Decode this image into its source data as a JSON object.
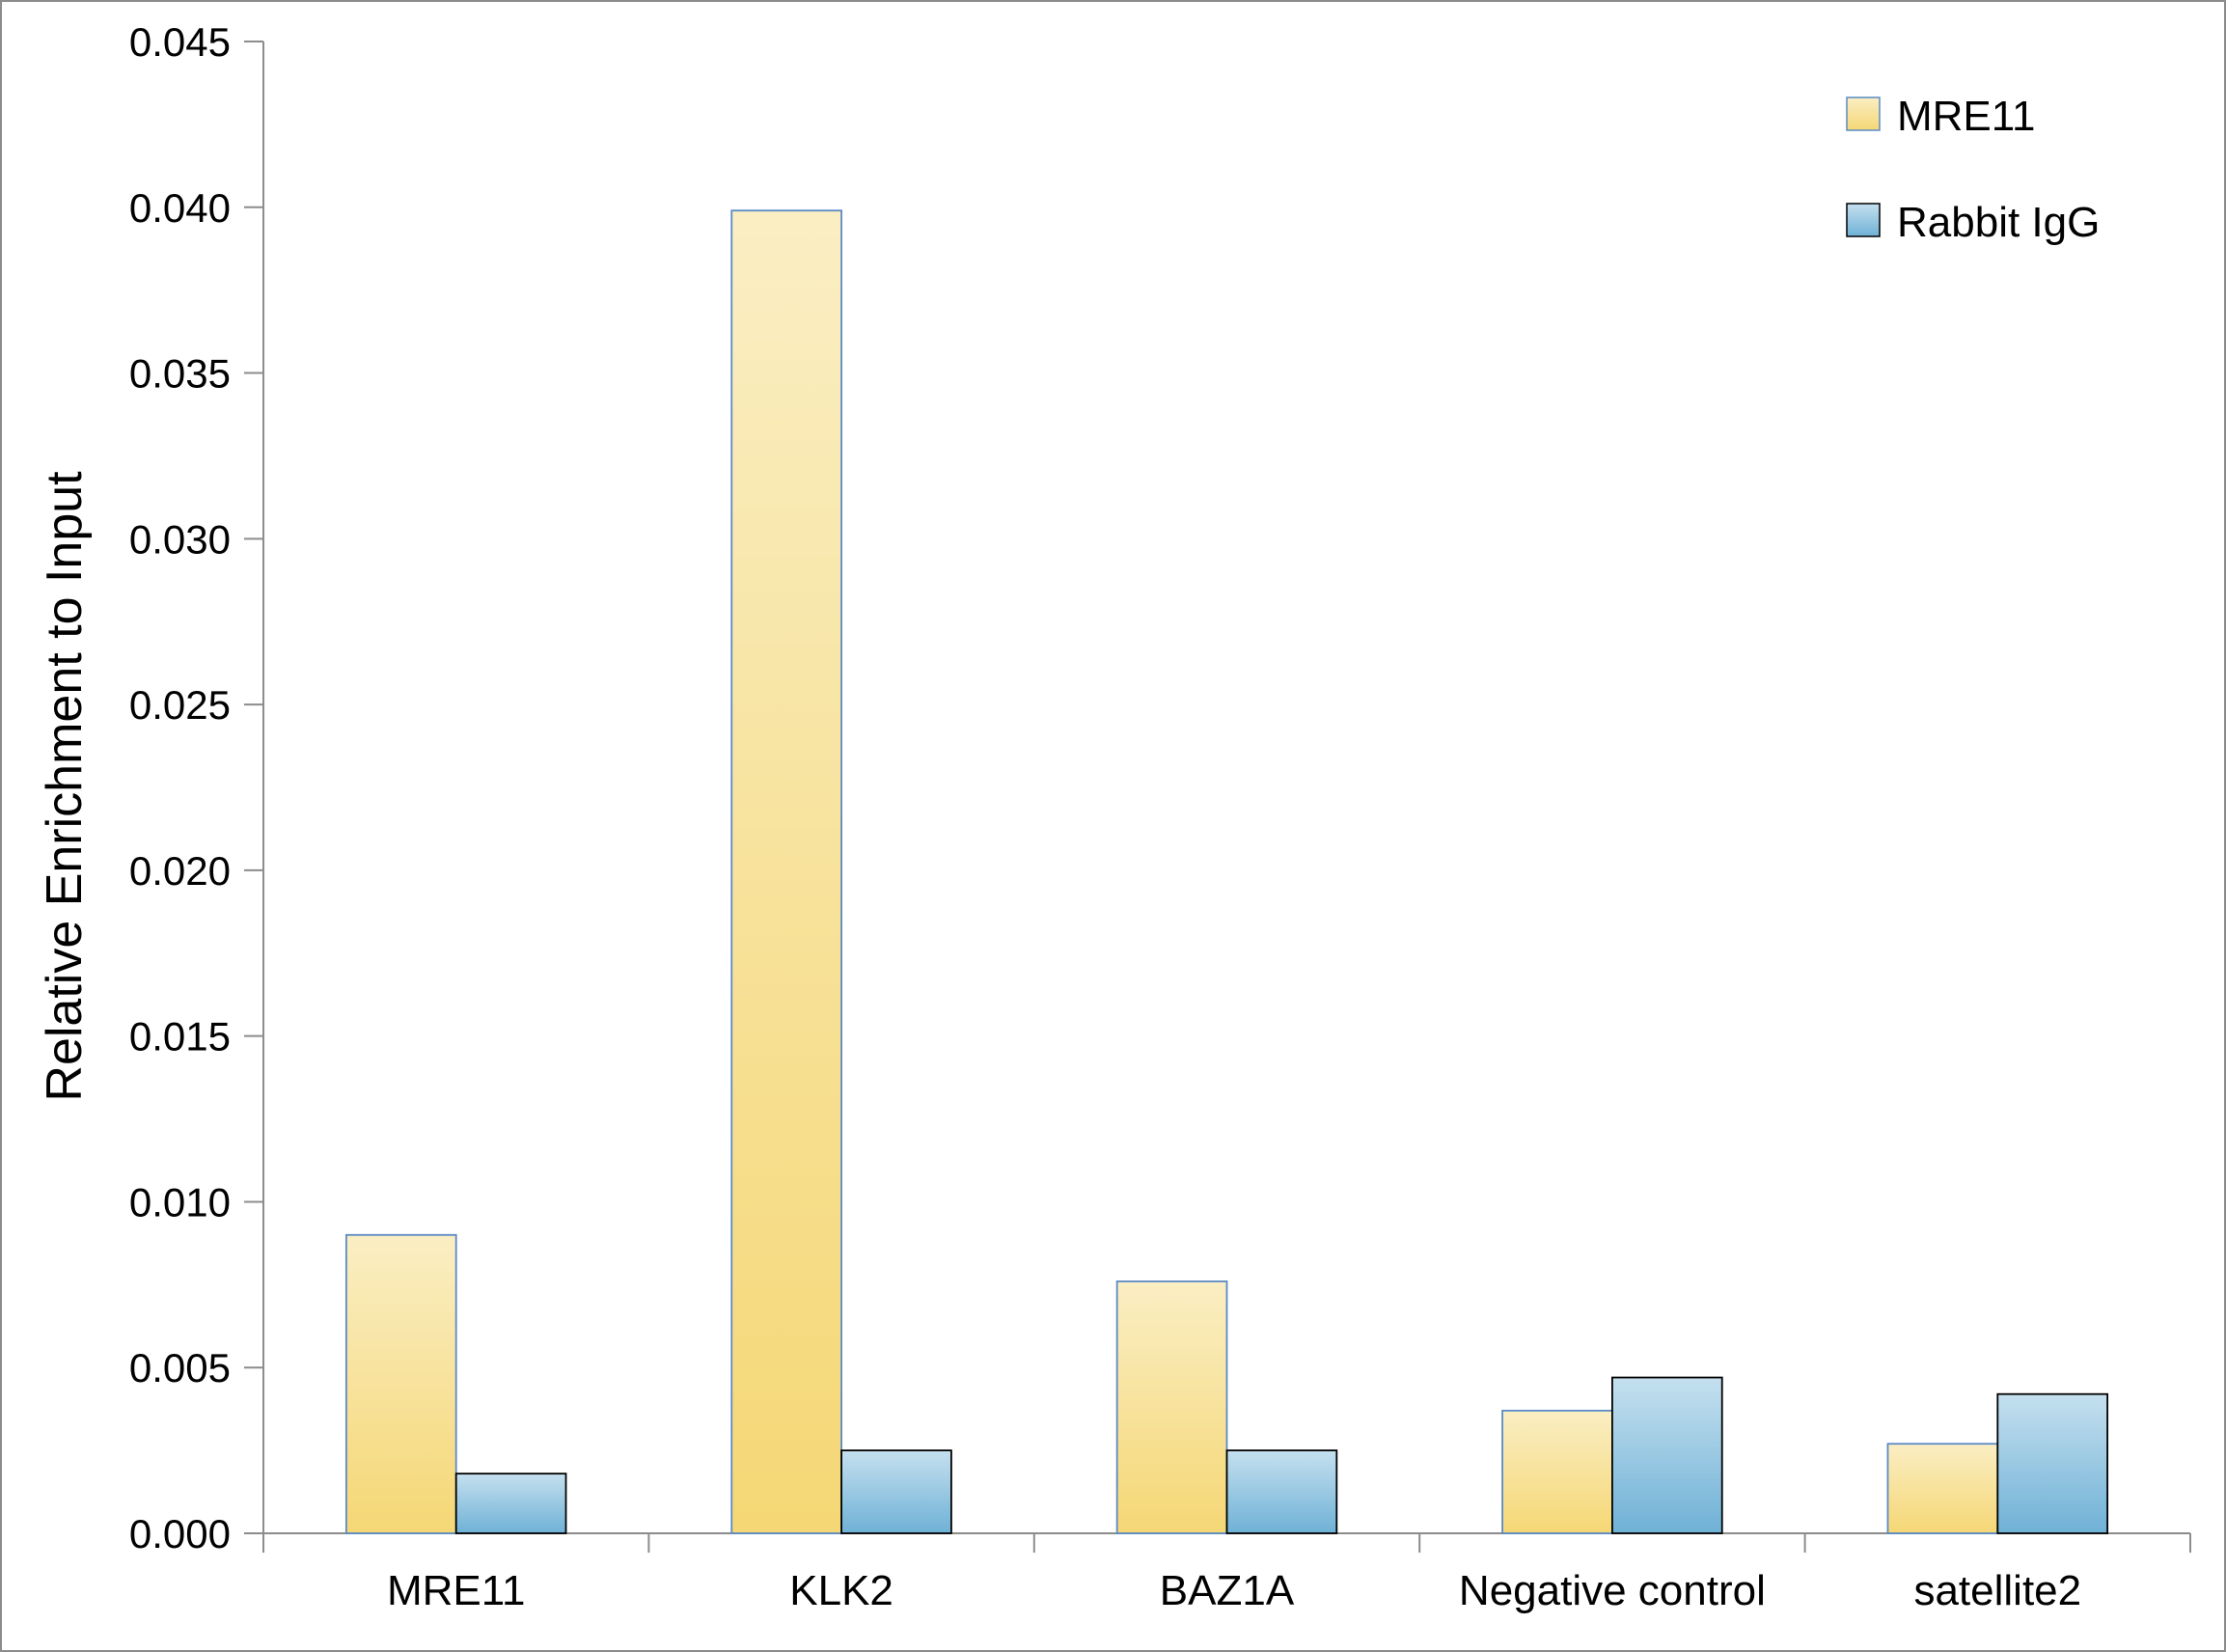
{
  "colors": {
    "mre11_fill_top": "#faeec3",
    "mre11_fill_bottom": "#f5d775",
    "mre11_stroke": "#5b8ac6",
    "igg_fill_top": "#c5e0ef",
    "igg_fill_bottom": "#6fb1d6",
    "igg_stroke": "#000000",
    "axis": "#8c8c8c"
  },
  "chart_data": {
    "type": "bar",
    "title": "",
    "xlabel": "",
    "ylabel": "Relative Enrichment to Input",
    "ylim": [
      0,
      0.045
    ],
    "yticks": [
      "0.000",
      "0.005",
      "0.010",
      "0.015",
      "0.020",
      "0.025",
      "0.030",
      "0.035",
      "0.040",
      "0.045"
    ],
    "categories": [
      "MRE11",
      "KLK2",
      "BAZ1A",
      "Negative control",
      "satellite2"
    ],
    "series": [
      {
        "name": "MRE11",
        "values": [
          0.009,
          0.0399,
          0.0076,
          0.0037,
          0.0027
        ]
      },
      {
        "name": "Rabbit IgG",
        "values": [
          0.0018,
          0.0025,
          0.0025,
          0.0047,
          0.0042
        ]
      }
    ],
    "legend": {
      "position": "top-right"
    },
    "grid": false
  }
}
